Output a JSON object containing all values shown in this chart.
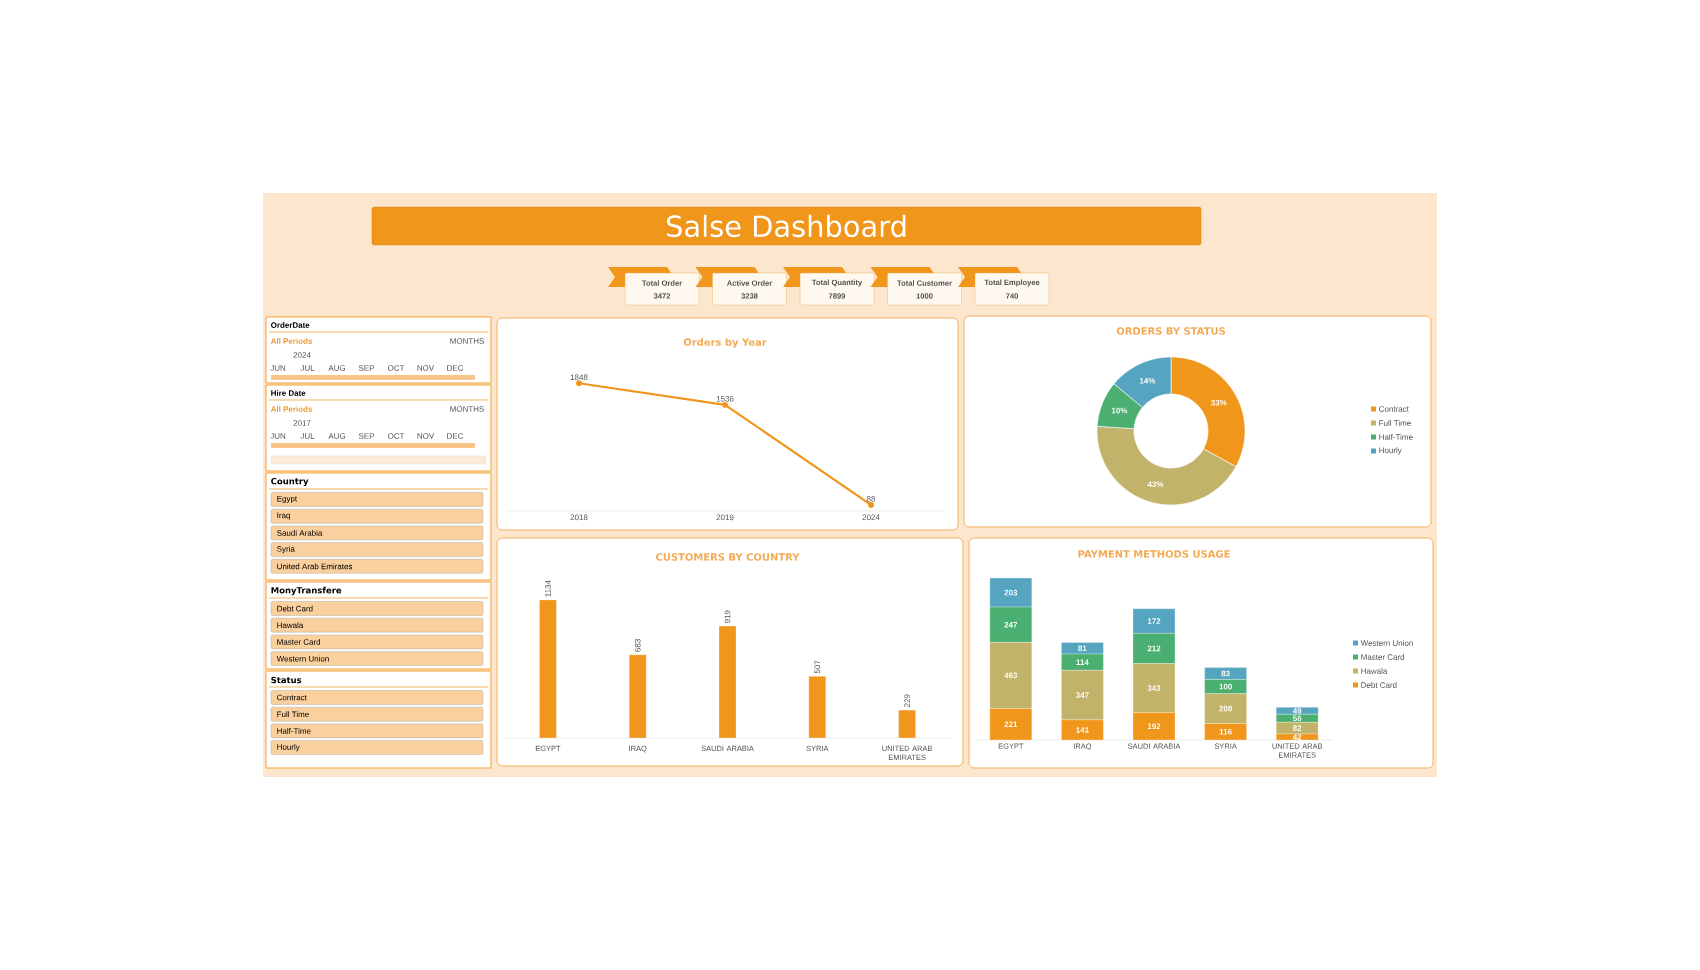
{
  "chart_data": [
    {
      "type": "other",
      "title": "Salse Dashboard",
      "annotations": [
        "Total Order",
        "3472",
        "Active Order",
        "3238",
        "Total Quantity",
        "7899",
        "Total Customer",
        "1000",
        "Total Employee",
        "740"
      ]
    },
    {
      "type": "other",
      "title": "OrderDate",
      "annotations": [
        "All Periods",
        "MONTHS",
        "2024",
        "JUN",
        "JUL",
        "AUG",
        "SEP",
        "OCT",
        "NOV",
        "DEC"
      ]
    },
    {
      "type": "other",
      "title": "Hire Date",
      "annotations": [
        "All Periods",
        "MONTHS",
        "2017",
        "JUN",
        "JUL",
        "AUG",
        "SEP",
        "OCT",
        "NOV",
        "DEC"
      ]
    },
    {
      "type": "other",
      "title": "Country",
      "annotations": [
        "Egypt",
        "Iraq",
        "Saudi Arabia",
        "Syria",
        "United Arab Emirates"
      ]
    },
    {
      "type": "other",
      "title": "MonyTransfere",
      "annotations": [
        "Debt Card",
        "Hawala",
        "Master Card",
        "Western Union"
      ]
    },
    {
      "type": "other",
      "title": "Status",
      "annotations": [
        "Contract",
        "Full Time",
        "Half-Time",
        "Hourly"
      ]
    },
    {
      "type": "line",
      "title": "Orders by Year",
      "categories": [
        "2018",
        "2019",
        "2024"
      ],
      "values": [
        1848,
        1536,
        88
      ],
      "color": "#f0961a",
      "marker": "circle",
      "data_labels": true
    },
    {
      "type": "donut",
      "title": "ORDERS BY STATUS",
      "categories": [
        "Contract",
        "Full Time",
        "Half-Time",
        "Hourly"
      ],
      "values": [
        33,
        43,
        10,
        14
      ],
      "value_labels": [
        "33%",
        "43%",
        "10%",
        "14%"
      ],
      "colors": [
        "#f0961a",
        "#c2b36a",
        "#4caf72",
        "#56a5c0"
      ],
      "legend": "right"
    },
    {
      "type": "bar",
      "title": "CUSTOMERS BY COUNTRY",
      "categories": [
        "EGYPT",
        "IRAQ",
        "SAUDI ARABIA",
        "SYRIA",
        "UNITED ARAB EMIRATES"
      ],
      "values": [
        1134,
        683,
        919,
        507,
        229
      ],
      "color": "#f0961a",
      "data_labels": true
    },
    {
      "type": "bar",
      "title": "PAYMENT METHODS USAGE",
      "categories": [
        "EGYPT",
        "IRAQ",
        "SAUDI ARABIA",
        "SYRIA",
        "UNITED ARAB EMIRATES"
      ],
      "stacked": true,
      "data_labels": true,
      "legend": "right",
      "series": [
        {
          "name": "Debt Card",
          "color": "#f0961a",
          "values": [
            221,
            141,
            192,
            116,
            42
          ]
        },
        {
          "name": "Hawala",
          "color": "#c2b36a",
          "values": [
            463,
            347,
            343,
            208,
            82
          ]
        },
        {
          "name": "Master Card",
          "color": "#4caf72",
          "values": [
            247,
            114,
            212,
            100,
            56
          ]
        },
        {
          "name": "Western Union",
          "color": "#56a5c0",
          "values": [
            203,
            81,
            172,
            83,
            49
          ]
        }
      ]
    }
  ]
}
